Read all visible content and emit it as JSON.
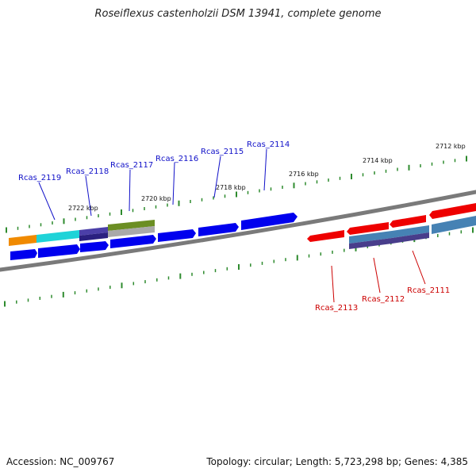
{
  "title": "Roseiflexus castenholzii DSM 13941, complete genome",
  "footer": {
    "accession": "Accession: NC_009767",
    "stats": "Topology: circular; Length: 5,723,298 bp; Genes: 4,385"
  },
  "colors": {
    "backbone": "#7a7a7a",
    "tick": "#2e8b2e",
    "forward_label": "#1010c8",
    "reverse_label": "#cc0000",
    "forward_gene": "#0000ee",
    "reverse_gene": "#ee0000"
  },
  "scale": {
    "labels": [
      "2722 kbp",
      "2720 kbp",
      "2718 kbp",
      "2716 kbp",
      "2714 kbp",
      "2712 kbp"
    ]
  },
  "gene_labels_forward": [
    "Rcas_2119",
    "Rcas_2118",
    "Rcas_2117",
    "Rcas_2116",
    "Rcas_2115",
    "Rcas_2114"
  ],
  "gene_labels_reverse": [
    "Rcas_2113",
    "Rcas_2112",
    "Rcas_2111"
  ],
  "track_colors": {
    "orange": "#f08a00",
    "cyan": "#1fd3d8",
    "purple": "#4b3fa8",
    "olive": "#6b8e23",
    "gray": "#a9a9a9",
    "steel": "#4682b4",
    "slate": "#6a5acd"
  }
}
